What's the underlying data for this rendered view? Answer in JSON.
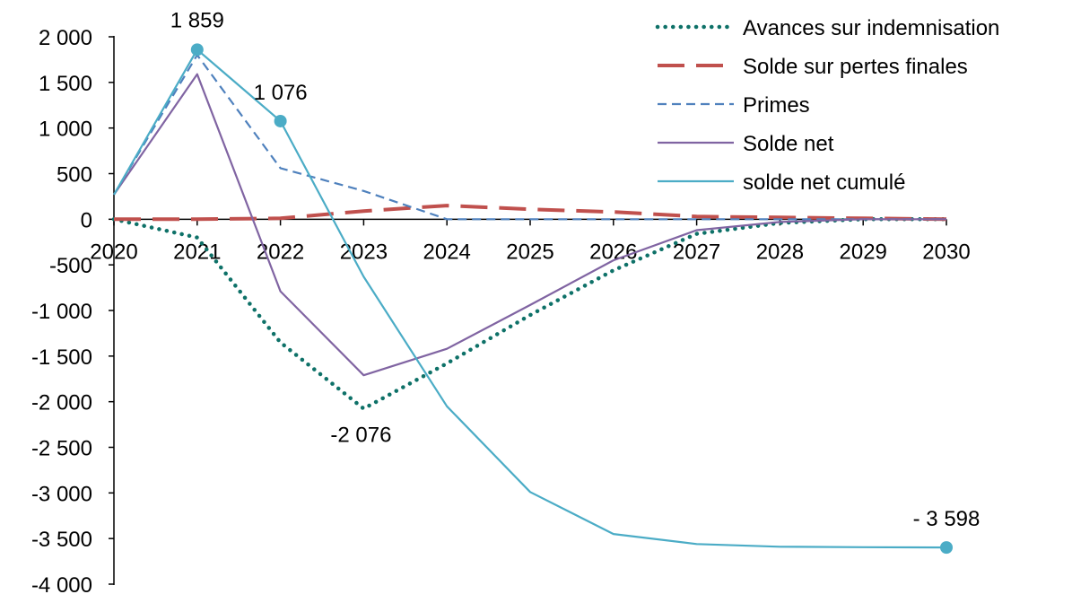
{
  "chart_data": {
    "type": "line",
    "title": "",
    "xlabel": "",
    "ylabel": "",
    "x": [
      "2020",
      "2021",
      "2022",
      "2023",
      "2024",
      "2025",
      "2026",
      "2027",
      "2028",
      "2029",
      "2030"
    ],
    "ylim": [
      -4000,
      2000
    ],
    "yticks": [
      2000,
      1500,
      1000,
      500,
      0,
      -500,
      -1000,
      -1500,
      -2000,
      -2500,
      -3000,
      -3500,
      -4000
    ],
    "ytick_labels": [
      "2 000",
      "1 500",
      "1 000",
      "500",
      "0",
      "-500",
      "-1 000",
      "-1 500",
      "-2 000",
      "-2 500",
      "-3 000",
      "-3 500",
      "-4 000"
    ],
    "grid": false,
    "legend_position": "top-right",
    "series": [
      {
        "name": "Avances sur indemnisation",
        "color": "#0e7168",
        "style": "dotted",
        "values": [
          0,
          -200,
          -1350,
          -2076,
          -1580,
          -1050,
          -560,
          -160,
          -40,
          0,
          0
        ]
      },
      {
        "name": "Solde sur pertes finales",
        "color": "#c0504d",
        "style": "long-dash",
        "values": [
          0,
          0,
          10,
          90,
          150,
          110,
          80,
          30,
          20,
          10,
          0
        ]
      },
      {
        "name": "Primes",
        "color": "#4f81bd",
        "style": "dashed",
        "values": [
          270,
          1800,
          560,
          310,
          0,
          0,
          0,
          0,
          0,
          0,
          0
        ]
      },
      {
        "name": "Solde net",
        "color": "#8064a2",
        "style": "solid",
        "values": [
          270,
          1590,
          -790,
          -1710,
          -1420,
          -940,
          -450,
          -120,
          -30,
          0,
          0
        ]
      },
      {
        "name": "solde net cumulé",
        "color": "#4bacc6",
        "style": "solid",
        "values": [
          270,
          1859,
          1076,
          -630,
          -2050,
          -2990,
          -3450,
          -3560,
          -3590,
          -3595,
          -3598
        ]
      }
    ],
    "annotations": [
      {
        "series": "solde net cumulé",
        "x": "2021",
        "value": 1859,
        "label": "1 859",
        "marker": true
      },
      {
        "series": "solde net cumulé",
        "x": "2022",
        "value": 1076,
        "label": "1 076",
        "marker": true
      },
      {
        "series": "Avances sur indemnisation",
        "x": "2023",
        "value": -2076,
        "label": "-2 076",
        "marker": false
      },
      {
        "series": "solde net cumulé",
        "x": "2030",
        "value": -3598,
        "label": "- 3 598",
        "marker": true
      }
    ]
  }
}
